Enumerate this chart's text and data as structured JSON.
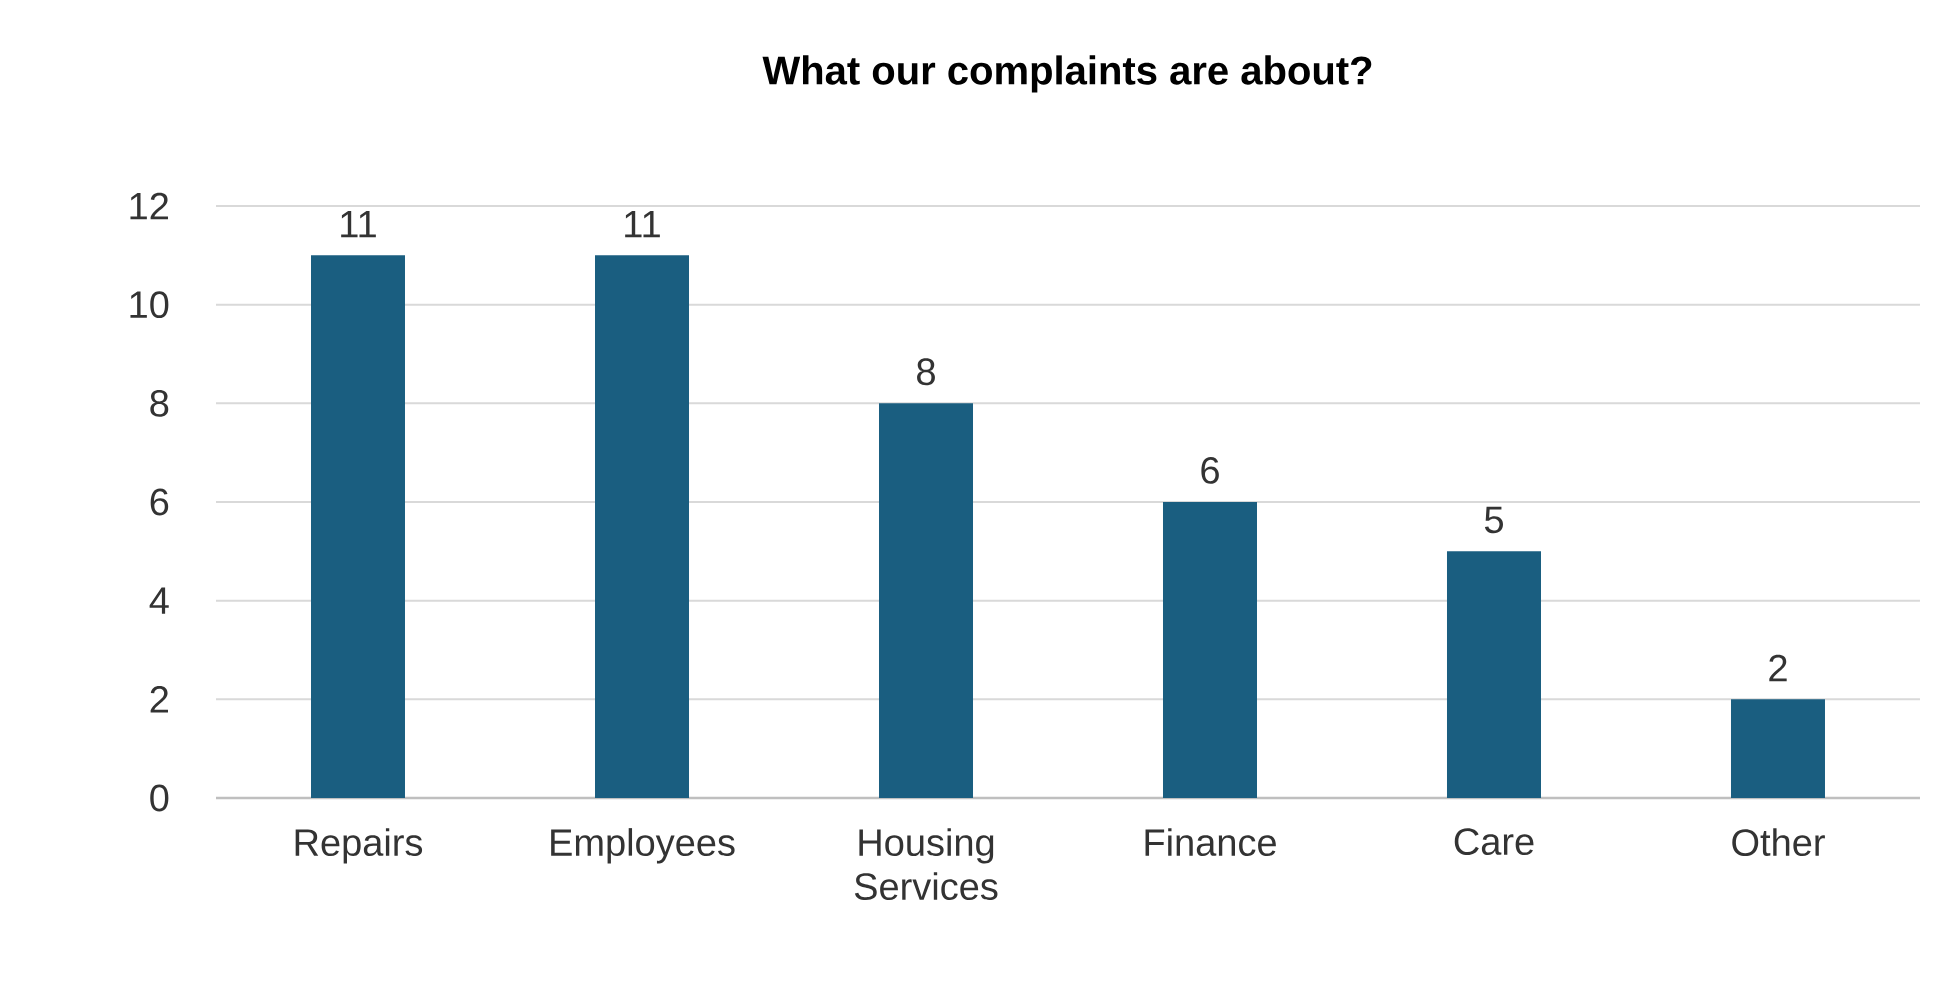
{
  "chart_data": {
    "type": "bar",
    "title": "What our complaints are about?",
    "categories": [
      "Repairs",
      "Employees",
      "Housing Services",
      "Finance",
      "Care",
      "Other"
    ],
    "values": [
      11,
      11,
      8,
      6,
      5,
      2
    ],
    "color": "#1a5e80",
    "ylim": [
      0,
      12
    ],
    "yticks": [
      0,
      2,
      4,
      6,
      8,
      10,
      12
    ],
    "grid": "y",
    "data_labels": true
  }
}
